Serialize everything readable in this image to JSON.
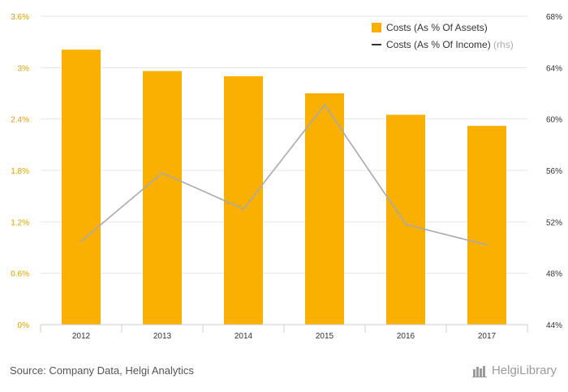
{
  "chart_data": {
    "type": "bar",
    "categories": [
      "2012",
      "2013",
      "2014",
      "2015",
      "2016",
      "2017"
    ],
    "series": [
      {
        "name": "Costs (As % Of Assets)",
        "kind": "bar",
        "axis": "left",
        "values": [
          3.21,
          2.96,
          2.9,
          2.7,
          2.45,
          2.32
        ]
      },
      {
        "name": "Costs (As % Of Income)",
        "kind": "line",
        "axis": "right",
        "values": [
          50.5,
          55.8,
          53.0,
          61.1,
          51.8,
          50.2
        ]
      }
    ],
    "left_axis": {
      "min": 0,
      "max": 3.6,
      "ticks": [
        {
          "value": 0,
          "label": "0%"
        },
        {
          "value": 0.6,
          "label": "0.6%"
        },
        {
          "value": 1.2,
          "label": "1.2%"
        },
        {
          "value": 1.8,
          "label": "1.8%"
        },
        {
          "value": 2.4,
          "label": "2.4%"
        },
        {
          "value": 3.0,
          "label": "3%"
        },
        {
          "value": 3.6,
          "label": "3.6%"
        }
      ]
    },
    "right_axis": {
      "min": 44,
      "max": 68,
      "ticks": [
        {
          "value": 44,
          "label": "44%"
        },
        {
          "value": 48,
          "label": "48%"
        },
        {
          "value": 52,
          "label": "52%"
        },
        {
          "value": 56,
          "label": "56%"
        },
        {
          "value": 60,
          "label": "60%"
        },
        {
          "value": 64,
          "label": "64%"
        },
        {
          "value": 68,
          "label": "68%"
        }
      ]
    },
    "legend": {
      "bar_label": "Costs (As % Of Assets)",
      "line_label": "Costs (As % Of Income)",
      "line_suffix": "(rhs)",
      "placement": "top-right"
    },
    "colors": {
      "bar": "#f9b000",
      "line": "#aaaaaa",
      "grid": "#e6e6e6",
      "left_tick": "#d8a000"
    }
  },
  "footer": {
    "source": "Source: Company Data, Helgi Analytics",
    "brand": "HelgiLibrary"
  }
}
